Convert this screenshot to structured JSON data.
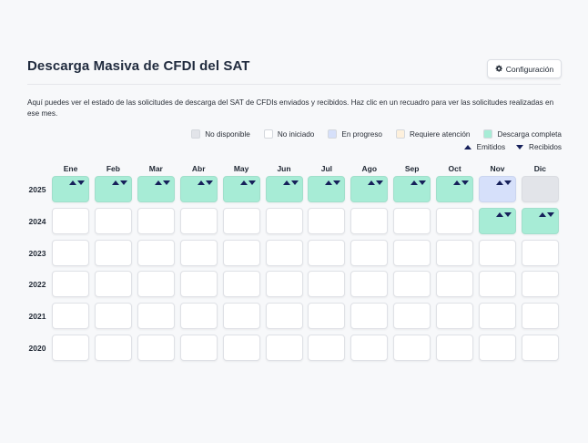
{
  "header": {
    "title": "Descarga Masiva de CFDI del SAT",
    "config_button": "Configuración",
    "config_icon": "gear-icon"
  },
  "description": "Aquí puedes ver el estado de las solicitudes de descarga del SAT de CFDIs enviados y recibidos. Haz clic en un recuadro para ver las solicitudes realizadas en ese mes.",
  "legend": {
    "statuses": [
      {
        "key": "unavailable",
        "label": "No disponible",
        "color": "#e2e4e9"
      },
      {
        "key": "not_started",
        "label": "No iniciado",
        "color": "#ffffff"
      },
      {
        "key": "progress",
        "label": "En progreso",
        "color": "#d6e0fa"
      },
      {
        "key": "attention",
        "label": "Requiere atención",
        "color": "#fdf0dc"
      },
      {
        "key": "complete",
        "label": "Descarga completa",
        "color": "#a7ecd6"
      }
    ],
    "emitidos": "Emitidos",
    "recibidos": "Recibidos"
  },
  "months": [
    "Ene",
    "Feb",
    "Mar",
    "Abr",
    "May",
    "Jun",
    "Jul",
    "Ago",
    "Sep",
    "Oct",
    "Nov",
    "Dic"
  ],
  "years": [
    {
      "year": "2025",
      "cells": [
        "complete",
        "complete",
        "complete",
        "complete",
        "complete",
        "complete",
        "complete",
        "complete",
        "complete",
        "complete",
        "progress",
        "unavailable"
      ]
    },
    {
      "year": "2024",
      "cells": [
        "not_started",
        "not_started",
        "not_started",
        "not_started",
        "not_started",
        "not_started",
        "not_started",
        "not_started",
        "not_started",
        "not_started",
        "complete",
        "complete"
      ]
    },
    {
      "year": "2023",
      "cells": [
        "not_started",
        "not_started",
        "not_started",
        "not_started",
        "not_started",
        "not_started",
        "not_started",
        "not_started",
        "not_started",
        "not_started",
        "not_started",
        "not_started"
      ]
    },
    {
      "year": "2022",
      "cells": [
        "not_started",
        "not_started",
        "not_started",
        "not_started",
        "not_started",
        "not_started",
        "not_started",
        "not_started",
        "not_started",
        "not_started",
        "not_started",
        "not_started"
      ]
    },
    {
      "year": "2021",
      "cells": [
        "not_started",
        "not_started",
        "not_started",
        "not_started",
        "not_started",
        "not_started",
        "not_started",
        "not_started",
        "not_started",
        "not_started",
        "not_started",
        "not_started"
      ]
    },
    {
      "year": "2020",
      "cells": [
        "not_started",
        "not_started",
        "not_started",
        "not_started",
        "not_started",
        "not_started",
        "not_started",
        "not_started",
        "not_started",
        "not_started",
        "not_started",
        "not_started"
      ]
    }
  ]
}
